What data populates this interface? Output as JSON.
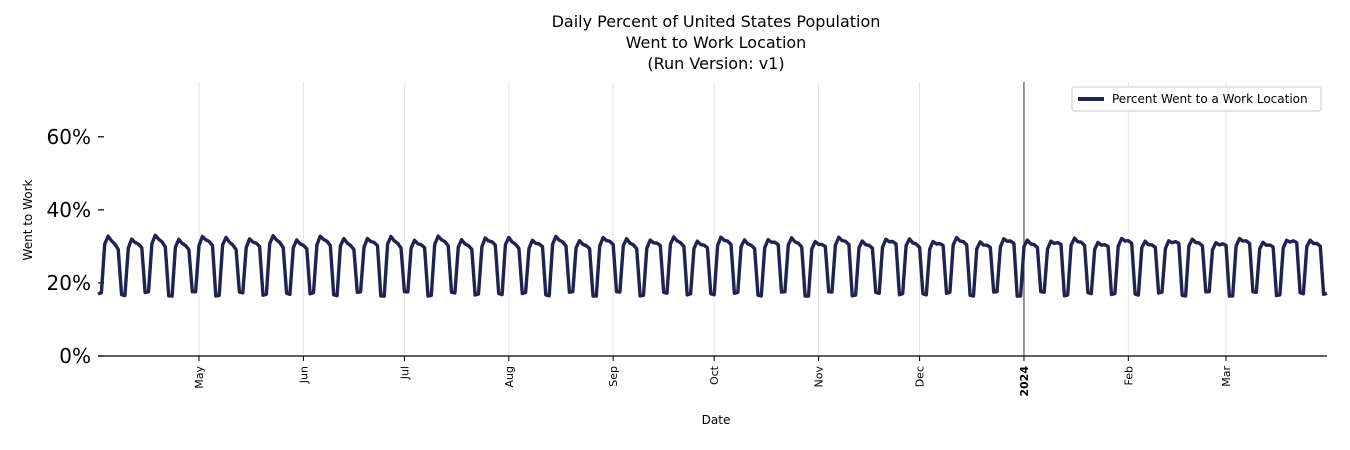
{
  "chart_data": {
    "type": "line",
    "title_lines": [
      "Daily Percent of United States Population",
      "Went to Work Location",
      "(Run Version: v1)"
    ],
    "xlabel": "Date",
    "ylabel": "Went to Work",
    "x_range": [
      "2023-04-01",
      "2024-03-31"
    ],
    "ylim": [
      0,
      75
    ],
    "y_ticks": [
      0,
      20,
      40,
      60
    ],
    "y_tick_labels": [
      "0%",
      "20%",
      "40%",
      "60%"
    ],
    "x_ticks": [
      {
        "date": "2023-05-01",
        "label": "May",
        "bold": false
      },
      {
        "date": "2023-06-01",
        "label": "Jun",
        "bold": false
      },
      {
        "date": "2023-07-01",
        "label": "Jul",
        "bold": false
      },
      {
        "date": "2023-08-01",
        "label": "Aug",
        "bold": false
      },
      {
        "date": "2023-09-01",
        "label": "Sep",
        "bold": false
      },
      {
        "date": "2023-10-01",
        "label": "Oct",
        "bold": false
      },
      {
        "date": "2023-11-01",
        "label": "Nov",
        "bold": false
      },
      {
        "date": "2023-12-01",
        "label": "Dec",
        "bold": false
      },
      {
        "date": "2024-01-01",
        "label": "2024",
        "bold": true
      },
      {
        "date": "2024-02-01",
        "label": "Feb",
        "bold": false
      },
      {
        "date": "2024-03-01",
        "label": "Mar",
        "bold": false
      }
    ],
    "grid": "vertical",
    "legend_position": "top-right",
    "series": [
      {
        "name": "Percent Went to a Work Location",
        "color": "#1f2350",
        "weekly_pattern": "weekday values near 31-34%, weekend values near 16-18%",
        "weekday_value": 32,
        "weekend_value": 17
      }
    ]
  }
}
